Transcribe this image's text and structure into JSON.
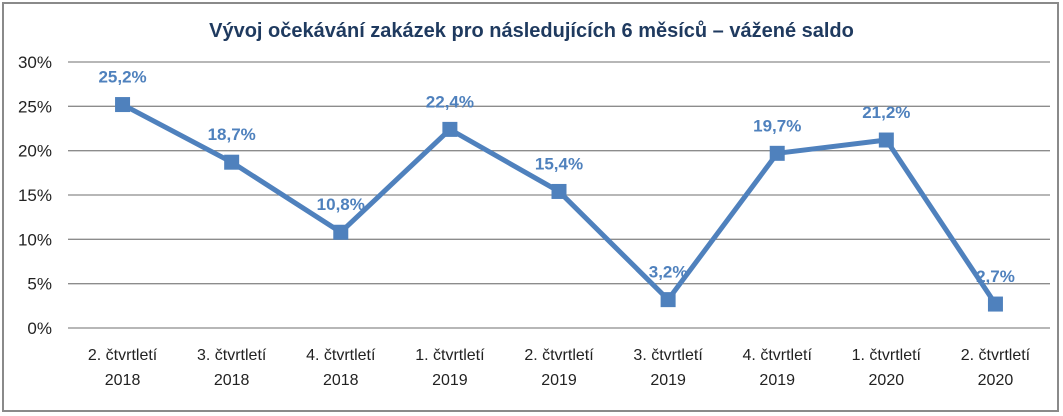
{
  "chart_data": {
    "type": "line",
    "title": "Vývoj očekávání zakázek pro následujících 6 měsíců – vážené saldo",
    "categories": [
      [
        "2. čtvrtletí",
        "2018"
      ],
      [
        "3. čtvrtletí",
        "2018"
      ],
      [
        "4. čtvrtletí",
        "2018"
      ],
      [
        "1. čtvrtletí",
        "2019"
      ],
      [
        "2. čtvrtletí",
        "2019"
      ],
      [
        "3. čtvrtletí",
        "2019"
      ],
      [
        "4. čtvrtletí",
        "2019"
      ],
      [
        "1. čtvrtletí",
        "2020"
      ],
      [
        "2. čtvrtletí",
        "2020"
      ]
    ],
    "values": [
      25.2,
      18.7,
      10.8,
      22.4,
      15.4,
      3.2,
      19.7,
      21.2,
      2.7
    ],
    "data_labels": [
      "25,2%",
      "18,7%",
      "10,8%",
      "22,4%",
      "15,4%",
      "3,2%",
      "19,7%",
      "21,2%",
      "2,7%"
    ],
    "yticks": [
      "0%",
      "5%",
      "10%",
      "15%",
      "20%",
      "25%",
      "30%"
    ],
    "ylim": [
      0,
      30
    ],
    "ystep": 5,
    "grid": true,
    "legend": "none",
    "series_color": "#4f81bd",
    "label_color": "#4f81bd",
    "grid_color": "#8c8c8c"
  }
}
